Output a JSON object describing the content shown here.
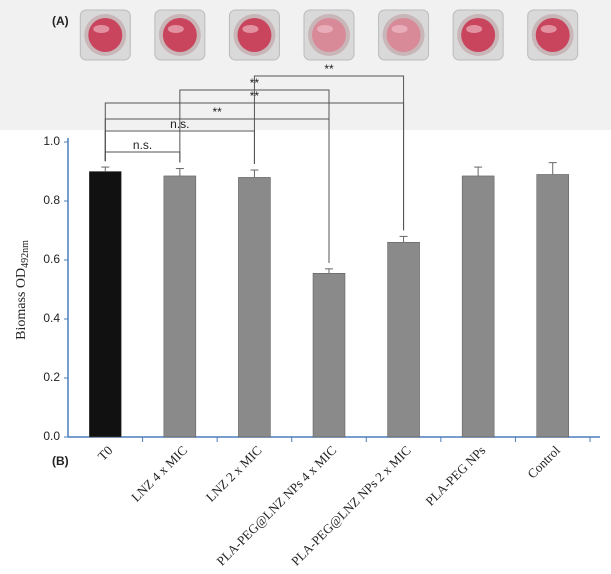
{
  "chart_data": {
    "type": "bar",
    "panel_labels": [
      "(A)",
      "(B)"
    ],
    "ylabel": {
      "text": "Biomass OD",
      "subscript": "492nm"
    },
    "categories": [
      "T0",
      "LNZ 4 x MIC",
      "LNZ 2 x MIC",
      "PLA-PEG@LNZ NPs 4 x MIC",
      "PLA-PEG@LNZ NPs 2 x MIC",
      "PLA-PEG NPs",
      "Control"
    ],
    "values": [
      0.9,
      0.885,
      0.88,
      0.555,
      0.66,
      0.885,
      0.89
    ],
    "errors": [
      0.015,
      0.025,
      0.025,
      0.015,
      0.02,
      0.03,
      0.04
    ],
    "colors": [
      "#111111",
      "#8a8a8a",
      "#8a8a8a",
      "#8a8a8a",
      "#8a8a8a",
      "#8a8a8a",
      "#8a8a8a"
    ],
    "ylim": [
      0,
      1.0
    ],
    "yticks": [
      {
        "value": 0,
        "label": "0.0"
      },
      {
        "value": 0.2,
        "label": "0.2"
      },
      {
        "value": 0.4,
        "label": "0.4"
      },
      {
        "value": 0.6,
        "label": "0.6"
      },
      {
        "value": 0.8,
        "label": "0.8"
      },
      {
        "value": 1.0,
        "label": "1.0"
      }
    ],
    "comparisons": [
      {
        "pair": [
          0,
          1
        ],
        "label": "n.s."
      },
      {
        "pair": [
          0,
          2
        ],
        "label": "n.s."
      },
      {
        "pair": [
          0,
          3
        ],
        "label": "**"
      },
      {
        "pair": [
          0,
          4
        ],
        "label": "**"
      },
      {
        "pair": [
          1,
          3
        ],
        "label": "**"
      },
      {
        "pair": [
          2,
          4
        ],
        "label": "**"
      }
    ]
  }
}
